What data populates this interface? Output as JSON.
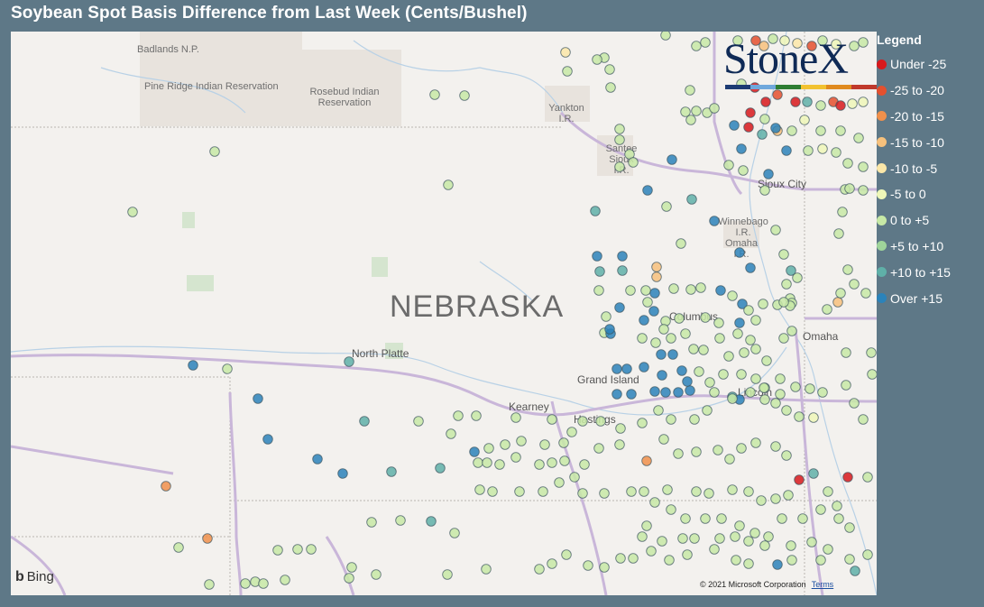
{
  "title": "Soybean Spot Basis Difference from Last Week (Cents/Bushel)",
  "legend": {
    "title": "Legend",
    "items": [
      {
        "label": "Under -25",
        "color": "#d7191c"
      },
      {
        "label": "-25 to -20",
        "color": "#e4502e"
      },
      {
        "label": "-20 to -15",
        "color": "#f0904b"
      },
      {
        "label": "-15 to -10",
        "color": "#f7c17c"
      },
      {
        "label": "-10 to -5",
        "color": "#fbe7a8"
      },
      {
        "label": "-5 to 0",
        "color": "#eef7b8"
      },
      {
        "label": "0 to +5",
        "color": "#c7e9a6"
      },
      {
        "label": "+5 to +10",
        "color": "#9fd49a"
      },
      {
        "label": "+10 to +15",
        "color": "#5fb0a8"
      },
      {
        "label": "Over +15",
        "color": "#2b83ba"
      }
    ]
  },
  "map": {
    "state_label": "NEBRASKA",
    "places": [
      "Badlands N.P.",
      "Pine Ridge Indian Reservation",
      "Rosebud Indian Reservation",
      "Yankton I.R.",
      "Santee Sioux I.R.",
      "Sioux City",
      "Winnebago I.R.",
      "Omaha I.R.",
      "Columbus",
      "Omaha",
      "North Platte",
      "Grand Island",
      "Kearney",
      "Hastings",
      "Lincoln"
    ],
    "attribution": "Bing",
    "copyright": "© 2021 Microsoft Corporation",
    "terms": "Terms"
  },
  "logo": {
    "text": "StoneX",
    "bar_colors": [
      "#1c3b73",
      "#6fa8dc",
      "#2e7d32",
      "#f2c230",
      "#e08a1e",
      "#c0392b"
    ]
  }
}
